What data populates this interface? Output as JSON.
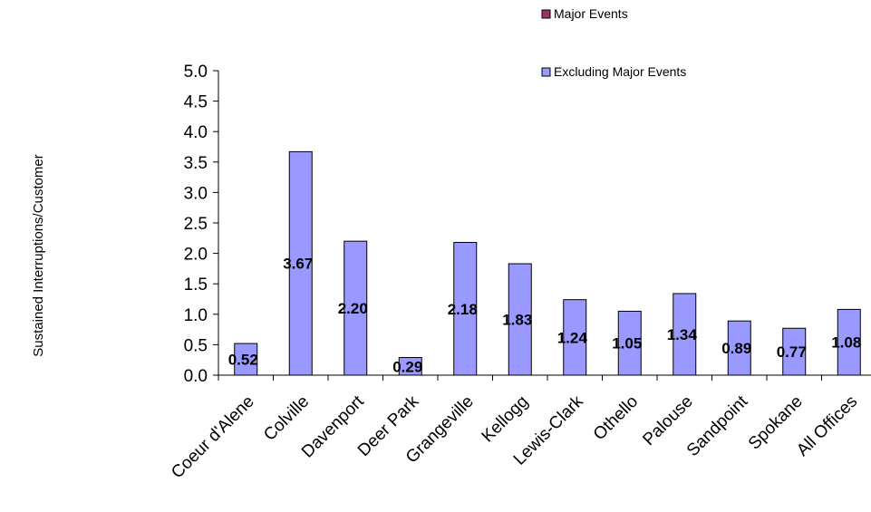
{
  "chart_data": {
    "type": "bar",
    "xlabel": "",
    "ylabel": "Sustained Interruptions/Customer",
    "ylim": [
      0,
      5.0
    ],
    "ytick_step": 0.5,
    "yticks": [
      "0.0",
      "0.5",
      "1.0",
      "1.5",
      "2.0",
      "2.5",
      "3.0",
      "3.5",
      "4.0",
      "4.5",
      "5.0"
    ],
    "grid": false,
    "legend_position": "top-right",
    "categories": [
      "Coeur d'Alene",
      "Colville",
      "Davenport",
      "Deer Park",
      "Grangeville",
      "Kellogg",
      "Lewis-Clark",
      "Othello",
      "Palouse",
      "Sandpoint",
      "Spokane",
      "All Offices"
    ],
    "series": [
      {
        "name": "Major Events",
        "color": "#993366",
        "values": [
          0,
          0,
          0,
          0,
          0,
          0,
          0,
          0,
          0,
          0,
          0,
          0
        ]
      },
      {
        "name": "Excluding Major Events",
        "color": "#9999ff",
        "values": [
          0.52,
          3.67,
          2.2,
          0.29,
          2.18,
          1.83,
          1.24,
          1.05,
          1.34,
          0.89,
          0.77,
          1.08
        ],
        "data_labels": [
          "0.52",
          "3.67",
          "2.20",
          "0.29",
          "2.18",
          "1.83",
          "1.24",
          "1.05",
          "1.34",
          "0.89",
          "0.77",
          "1.08"
        ]
      }
    ]
  }
}
